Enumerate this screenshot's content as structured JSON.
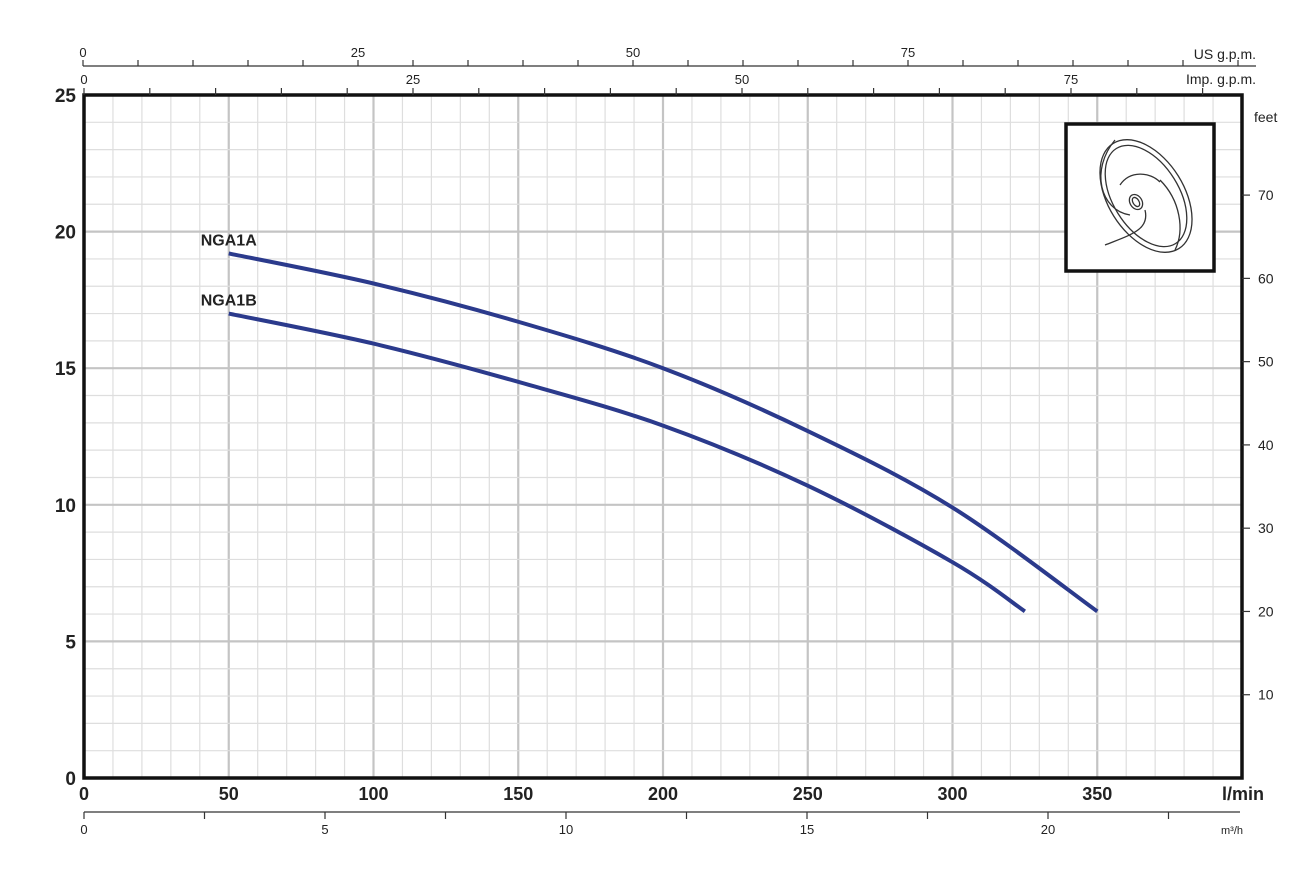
{
  "chart_data": {
    "type": "line",
    "title": "",
    "xlabel": "l/min",
    "ylabel": "",
    "xlim": [
      0,
      400
    ],
    "ylim": [
      0,
      25
    ],
    "grid": true,
    "x_ticks": [
      0,
      50,
      100,
      150,
      200,
      250,
      300,
      350
    ],
    "y_ticks": [
      0,
      5,
      10,
      15,
      20,
      25
    ],
    "secondary_axes": {
      "us_gpm": {
        "label": "US g.p.m.",
        "ticks": [
          0,
          25,
          50,
          75
        ]
      },
      "imp_gpm": {
        "label": "Imp. g.p.m.",
        "ticks": [
          0,
          25,
          50,
          75
        ]
      },
      "m3h": {
        "label": "m³/h",
        "ticks": [
          0,
          5,
          10,
          15,
          20
        ]
      },
      "feet": {
        "label": "feet",
        "ticks": [
          10,
          20,
          30,
          40,
          50,
          60,
          70
        ]
      }
    },
    "series": [
      {
        "name": "NGA1A",
        "color": "#2b3a8c",
        "x": [
          50,
          100,
          150,
          200,
          250,
          300,
          350
        ],
        "y": [
          19.2,
          18.1,
          16.7,
          15.0,
          12.7,
          9.9,
          6.1
        ]
      },
      {
        "name": "NGA1B",
        "color": "#2b3a8c",
        "x": [
          50,
          100,
          150,
          200,
          250,
          300,
          325
        ],
        "y": [
          17.0,
          15.9,
          14.5,
          12.9,
          10.7,
          7.9,
          6.1
        ]
      }
    ],
    "inset_icon": "impeller-icon"
  }
}
